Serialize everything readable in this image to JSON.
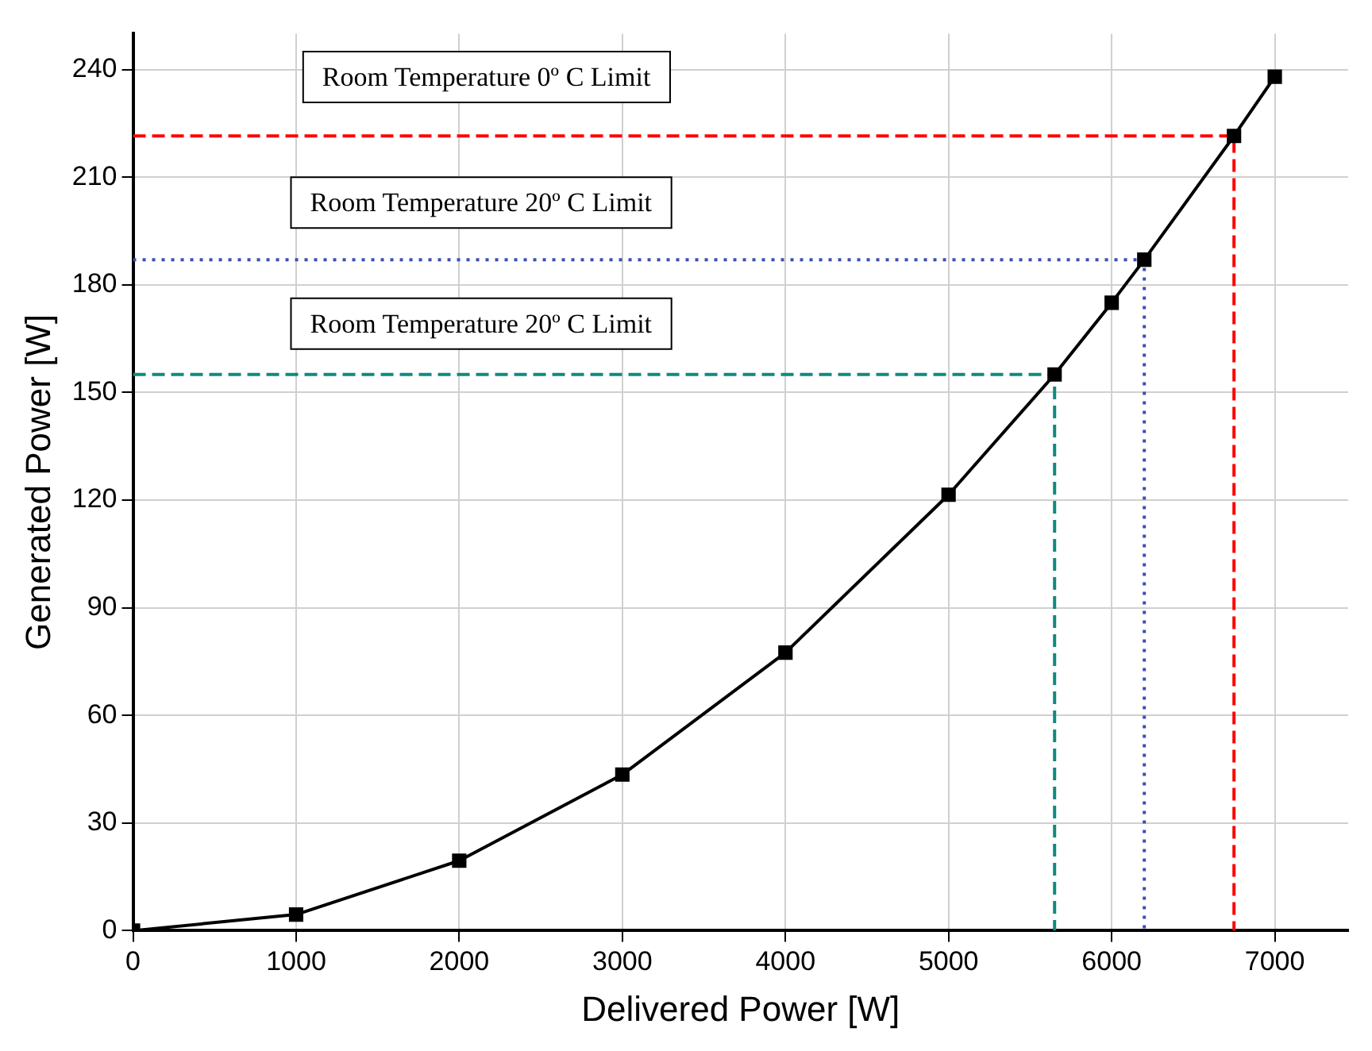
{
  "chart_data": {
    "type": "line",
    "xlabel": "Delivered Power [W]",
    "ylabel": "Generated Power [W]",
    "xlim": [
      0,
      7450
    ],
    "ylim": [
      0,
      250
    ],
    "xticks": [
      0,
      1000,
      2000,
      3000,
      4000,
      5000,
      6000,
      7000
    ],
    "yticks": [
      0,
      30,
      60,
      90,
      120,
      150,
      180,
      210,
      240
    ],
    "grid": true,
    "legend": false,
    "annotations": [
      "Room Temperature 0º C Limit",
      "Room Temperature 20º C Limit",
      "Room Temperature 20º C Limit"
    ],
    "series": [
      {
        "color": "#000000",
        "marker": "square",
        "line_style": "solid",
        "x": [
          0,
          1000,
          2000,
          3000,
          4000,
          5000,
          5650,
          6000,
          6200,
          6750,
          7000
        ],
        "values": [
          0,
          4.5,
          19.5,
          43.5,
          77.5,
          121.5,
          155,
          175,
          187,
          221.5,
          238
        ]
      },
      {
        "color": "#ff0000",
        "marker": "none",
        "line_style": "dashed",
        "x": [
          0,
          6750,
          6750
        ],
        "values": [
          221.5,
          221.5,
          0
        ]
      },
      {
        "color": "#3a4fb5",
        "marker": "none",
        "line_style": "dotted",
        "x": [
          0,
          6200,
          6200
        ],
        "values": [
          187,
          187,
          0
        ]
      },
      {
        "color": "#0f8a80",
        "marker": "none",
        "line_style": "dashed",
        "x": [
          0,
          5650,
          5650
        ],
        "values": [
          155,
          155,
          0
        ]
      }
    ]
  }
}
